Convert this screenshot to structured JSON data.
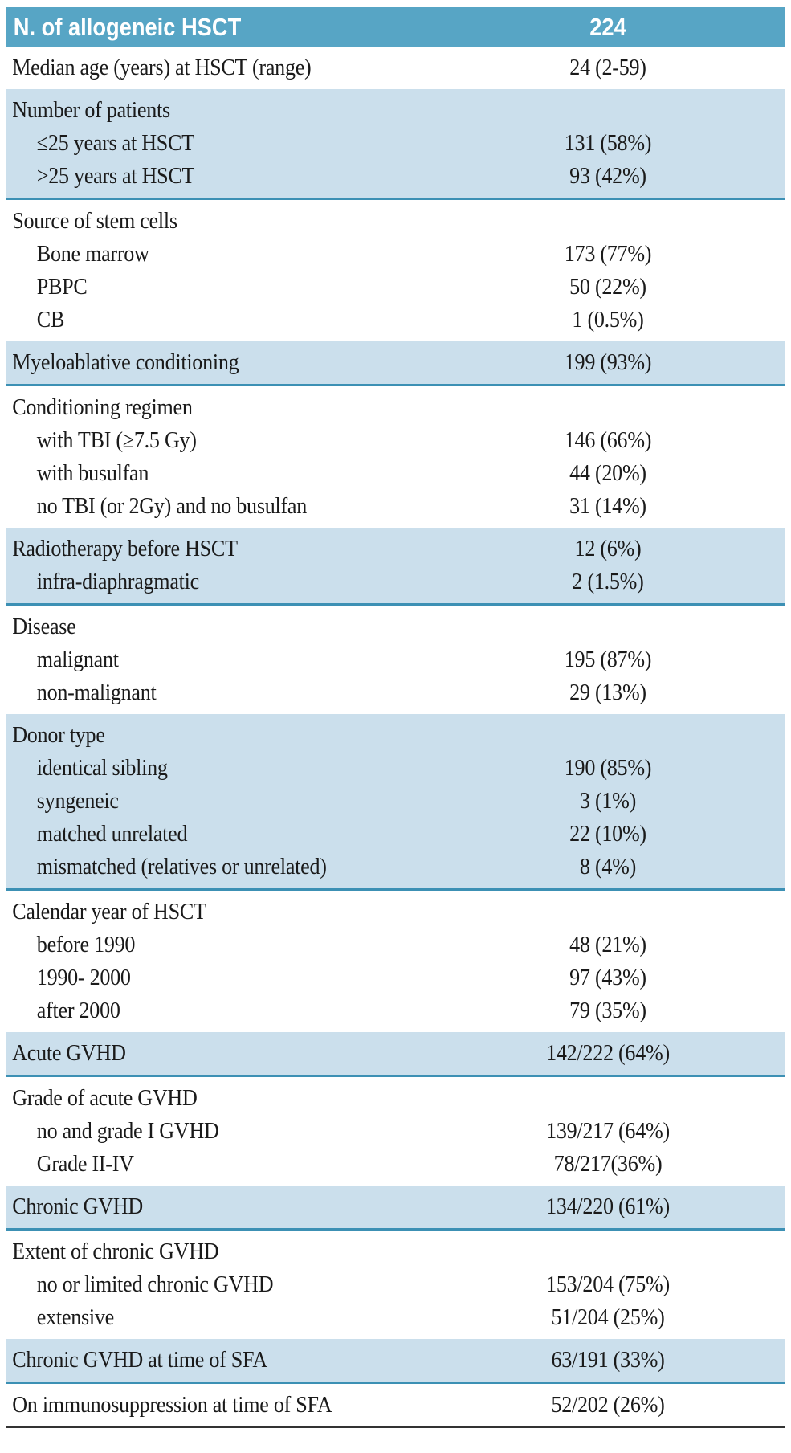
{
  "colors": {
    "header_bg": "#57a5c5",
    "shaded_row_bg": "#cbdfec",
    "section_rule": "#3c90b4",
    "bottom_rule": "#333333",
    "header_text": "#ffffff",
    "body_text": "#1a1a1a"
  },
  "table": {
    "header": {
      "label": "N. of allogeneic HSCT",
      "value": "224"
    },
    "sections": [
      {
        "shaded": false,
        "rows": [
          {
            "label": "Median age (years) at HSCT (range)",
            "value": "24 (2-59)",
            "indent": false
          }
        ]
      },
      {
        "shaded": true,
        "rows": [
          {
            "label": "Number of patients",
            "value": "",
            "indent": false
          },
          {
            "label": "≤25 years at HSCT",
            "value": "131 (58%)",
            "indent": true
          },
          {
            "label": ">25 years at HSCT",
            "value": "93 (42%)",
            "indent": true
          }
        ]
      },
      {
        "shaded": false,
        "rows": [
          {
            "label": "Source of stem cells",
            "value": "",
            "indent": false
          },
          {
            "label": "Bone marrow",
            "value": "173 (77%)",
            "indent": true
          },
          {
            "label": "PBPC",
            "value": "50 (22%)",
            "indent": true
          },
          {
            "label": "CB",
            "value": "1 (0.5%)",
            "indent": true
          }
        ]
      },
      {
        "shaded": true,
        "rows": [
          {
            "label": "Myeloablative conditioning",
            "value": "199 (93%)",
            "indent": false
          }
        ]
      },
      {
        "shaded": false,
        "rows": [
          {
            "label": "Conditioning regimen",
            "value": "",
            "indent": false
          },
          {
            "label": "with TBI (≥7.5 Gy)",
            "value": "146 (66%)",
            "indent": true
          },
          {
            "label": "with busulfan",
            "value": "44 (20%)",
            "indent": true
          },
          {
            "label": "no TBI (or 2Gy) and no busulfan",
            "value": "31 (14%)",
            "indent": true
          }
        ]
      },
      {
        "shaded": true,
        "rows": [
          {
            "label": "Radiotherapy before HSCT",
            "value": "12 (6%)",
            "indent": false
          },
          {
            "label": "infra-diaphragmatic",
            "value": "2 (1.5%)",
            "indent": true
          }
        ]
      },
      {
        "shaded": false,
        "rows": [
          {
            "label": "Disease",
            "value": "",
            "indent": false
          },
          {
            "label": "malignant",
            "value": "195 (87%)",
            "indent": true
          },
          {
            "label": "non-malignant",
            "value": "29 (13%)",
            "indent": true
          }
        ]
      },
      {
        "shaded": true,
        "rows": [
          {
            "label": "Donor type",
            "value": "",
            "indent": false
          },
          {
            "label": "identical sibling",
            "value": "190 (85%)",
            "indent": true
          },
          {
            "label": "syngeneic",
            "value": "3 (1%)",
            "indent": true
          },
          {
            "label": "matched unrelated",
            "value": "22 (10%)",
            "indent": true
          },
          {
            "label": "mismatched (relatives or unrelated)",
            "value": "8 (4%)",
            "indent": true
          }
        ]
      },
      {
        "shaded": false,
        "rows": [
          {
            "label": "Calendar year of HSCT",
            "value": "",
            "indent": false
          },
          {
            "label": "before 1990",
            "value": "48 (21%)",
            "indent": true
          },
          {
            "label": "1990- 2000",
            "value": "97 (43%)",
            "indent": true
          },
          {
            "label": "after 2000",
            "value": "79 (35%)",
            "indent": true
          }
        ]
      },
      {
        "shaded": true,
        "rows": [
          {
            "label": "Acute GVHD",
            "value": "142/222 (64%)",
            "indent": false
          }
        ]
      },
      {
        "shaded": false,
        "rows": [
          {
            "label": "Grade of acute GVHD",
            "value": "",
            "indent": false
          },
          {
            "label": "no and grade I GVHD",
            "value": "139/217 (64%)",
            "indent": true
          },
          {
            "label": "Grade II-IV",
            "value": "78/217(36%)",
            "indent": true
          }
        ]
      },
      {
        "shaded": true,
        "rows": [
          {
            "label": "Chronic GVHD",
            "value": "134/220 (61%)",
            "indent": false
          }
        ]
      },
      {
        "shaded": false,
        "rows": [
          {
            "label": "Extent of chronic GVHD",
            "value": "",
            "indent": false
          },
          {
            "label": "no or limited chronic GVHD",
            "value": "153/204 (75%)",
            "indent": true
          },
          {
            "label": "extensive",
            "value": "51/204 (25%)",
            "indent": true
          }
        ]
      },
      {
        "shaded": true,
        "rows": [
          {
            "label": "Chronic GVHD at time of SFA",
            "value": "63/191 (33%)",
            "indent": false
          }
        ]
      },
      {
        "shaded": false,
        "rows": [
          {
            "label": "On immunosuppression at time of SFA",
            "value": "52/202 (26%)",
            "indent": false
          }
        ]
      }
    ]
  }
}
